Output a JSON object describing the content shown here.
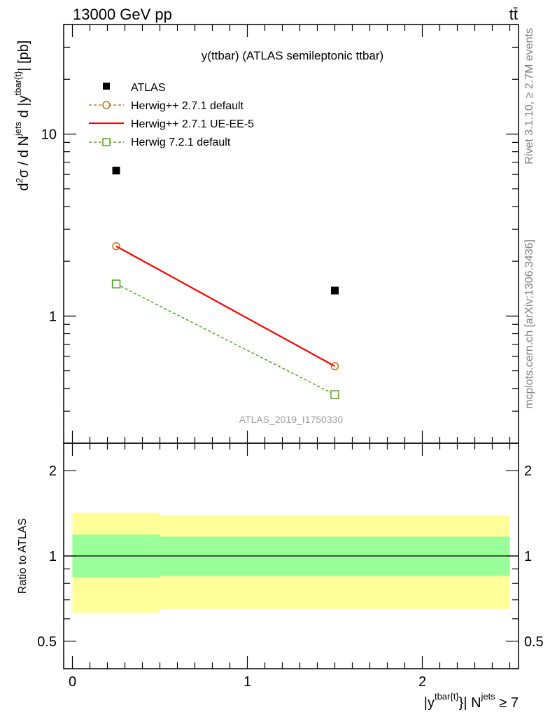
{
  "header": {
    "left": "13000 GeV pp",
    "right": "tt̄"
  },
  "side_labels": {
    "rivet": "Rivet 3.1.10, ≥ 2.7M events",
    "mcplots": "mcplots.cern.ch [arXiv:1306.3436]"
  },
  "chart_data": [
    {
      "type": "line",
      "title": "y(ttbar) (ATLAS semileptonic ttbar)",
      "watermark": "ATLAS_2019_I1750330",
      "ylabel": "d²σ / d N^jets d |y^tbar{t}| [pb]",
      "yscale": "log",
      "ylim": [
        0.2,
        40
      ],
      "xlim": [
        -0.05,
        2.55
      ],
      "yticks_major": [
        1,
        10
      ],
      "ytick_labels": [
        "1",
        "10"
      ],
      "legend_position": "top-left",
      "series": [
        {
          "name": "ATLAS",
          "x": [
            0.25,
            1.5
          ],
          "y": [
            6.3,
            1.38
          ],
          "color": "#000000",
          "style": "square-marker"
        },
        {
          "name": "Herwig++ 2.7.1 default",
          "x": [
            0.25,
            1.5
          ],
          "y": [
            2.42,
            0.53
          ],
          "color": "#b35900",
          "style": "dashed-circle"
        },
        {
          "name": "Herwig++ 2.7.1 UE-EE-5",
          "x": [
            0.25,
            1.5
          ],
          "y": [
            2.42,
            0.53
          ],
          "color": "#ff0000",
          "style": "solid"
        },
        {
          "name": "Herwig 7.2.1 default",
          "x": [
            0.25,
            1.5
          ],
          "y": [
            1.5,
            0.37
          ],
          "color": "#339900",
          "style": "dashed-square"
        }
      ]
    },
    {
      "type": "area",
      "ylabel": "Ratio to ATLAS",
      "xlabel": "|y^tbar{t}| N^jets ≥ 7",
      "yscale": "log",
      "ylim": [
        0.4,
        2.5
      ],
      "xlim": [
        -0.05,
        2.55
      ],
      "yticks": [
        0.5,
        1,
        2
      ],
      "ytick_labels": [
        "0.5",
        "1",
        "2"
      ],
      "xticks": [
        0,
        1,
        2
      ],
      "xtick_labels": [
        "0",
        "1",
        "2"
      ],
      "bins": [
        {
          "x_low": 0.0,
          "x_high": 0.5,
          "stat_lo": 0.84,
          "stat_hi": 1.19,
          "tot_lo": 0.63,
          "tot_hi": 1.42
        },
        {
          "x_low": 0.5,
          "x_high": 2.5,
          "stat_lo": 0.85,
          "stat_hi": 1.17,
          "tot_lo": 0.65,
          "tot_hi": 1.39
        }
      ],
      "band_colors": {
        "total": "#ffff99",
        "stat": "#99ff99"
      },
      "reference_line": 1
    }
  ]
}
